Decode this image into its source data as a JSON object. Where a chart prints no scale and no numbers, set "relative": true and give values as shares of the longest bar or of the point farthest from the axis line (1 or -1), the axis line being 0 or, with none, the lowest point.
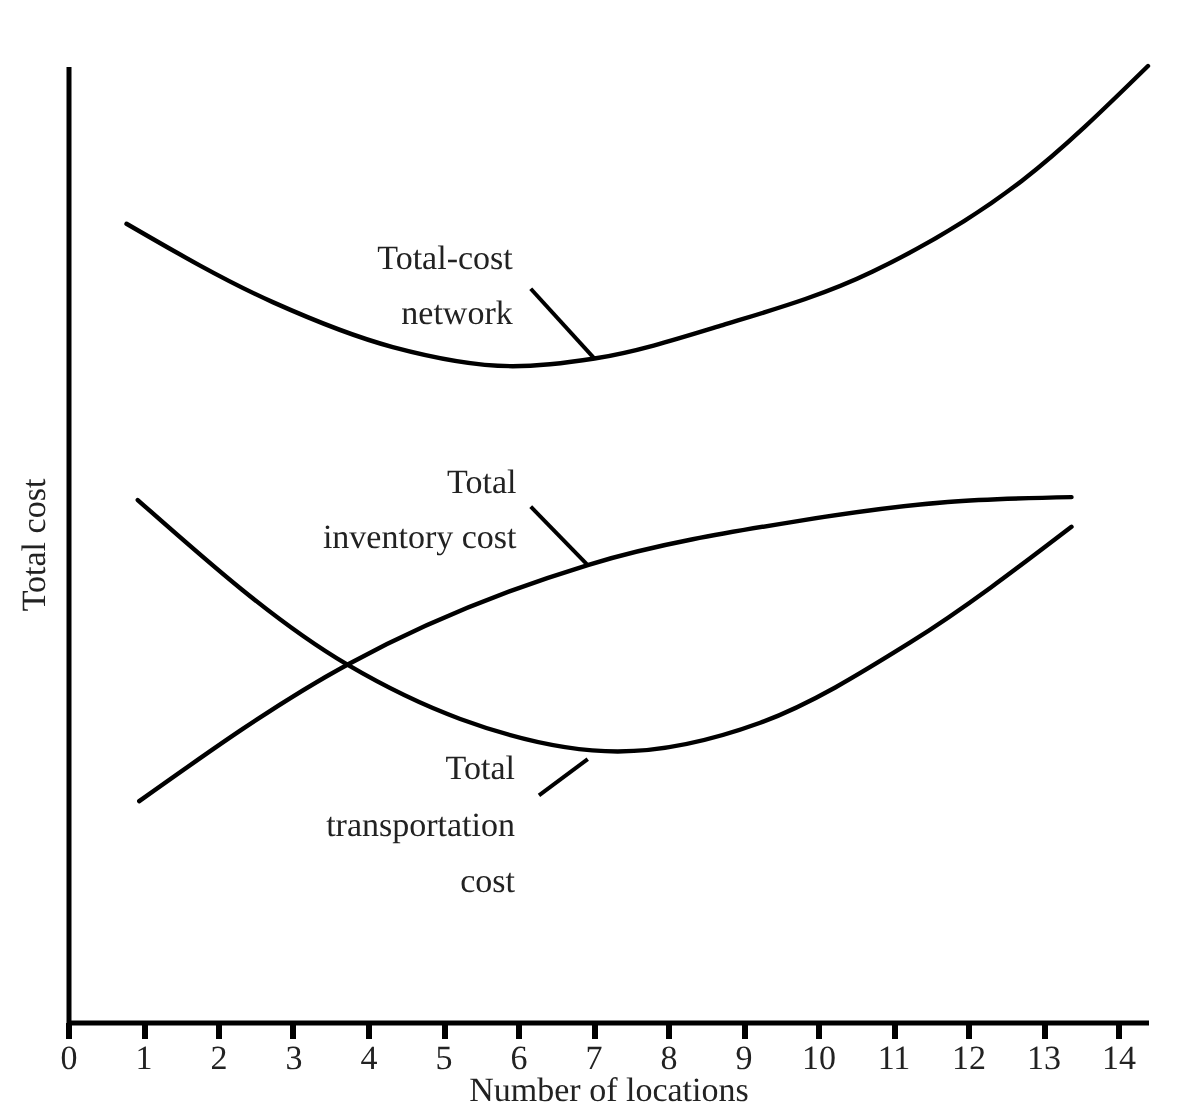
{
  "chart_data": {
    "type": "line",
    "relative": true,
    "xlabel": "Number of locations",
    "ylabel": "Total cost",
    "xlim": [
      0,
      14.4
    ],
    "xticks": [
      0,
      1,
      2,
      3,
      4,
      5,
      6,
      7,
      8,
      9,
      10,
      11,
      12,
      13,
      14
    ],
    "grid": false,
    "series": [
      {
        "name": "Total-cost network",
        "color": "#000000",
        "x": [
          0.78,
          2.73,
          4.33,
          5.93,
          7.02,
          8.73,
          10.73,
          12.72,
          14.4
        ],
        "values": [
          0.835,
          0.753,
          0.706,
          0.686,
          0.694,
          0.729,
          0.785,
          0.88,
          1.0
        ]
      },
      {
        "name": "Total inventory cost",
        "color": "#000000",
        "x": [
          0.95,
          3.73,
          6.93,
          9.73,
          11.73,
          13.38
        ],
        "values": [
          0.231,
          0.374,
          0.478,
          0.524,
          0.544,
          0.549
        ]
      },
      {
        "name": "Total transportation cost",
        "color": "#000000",
        "x": [
          0.93,
          3.72,
          5.23,
          7.33,
          9.23,
          11.23,
          13.38
        ],
        "values": [
          0.546,
          0.374,
          0.317,
          0.283,
          0.313,
          0.397,
          0.518
        ]
      }
    ]
  }
}
